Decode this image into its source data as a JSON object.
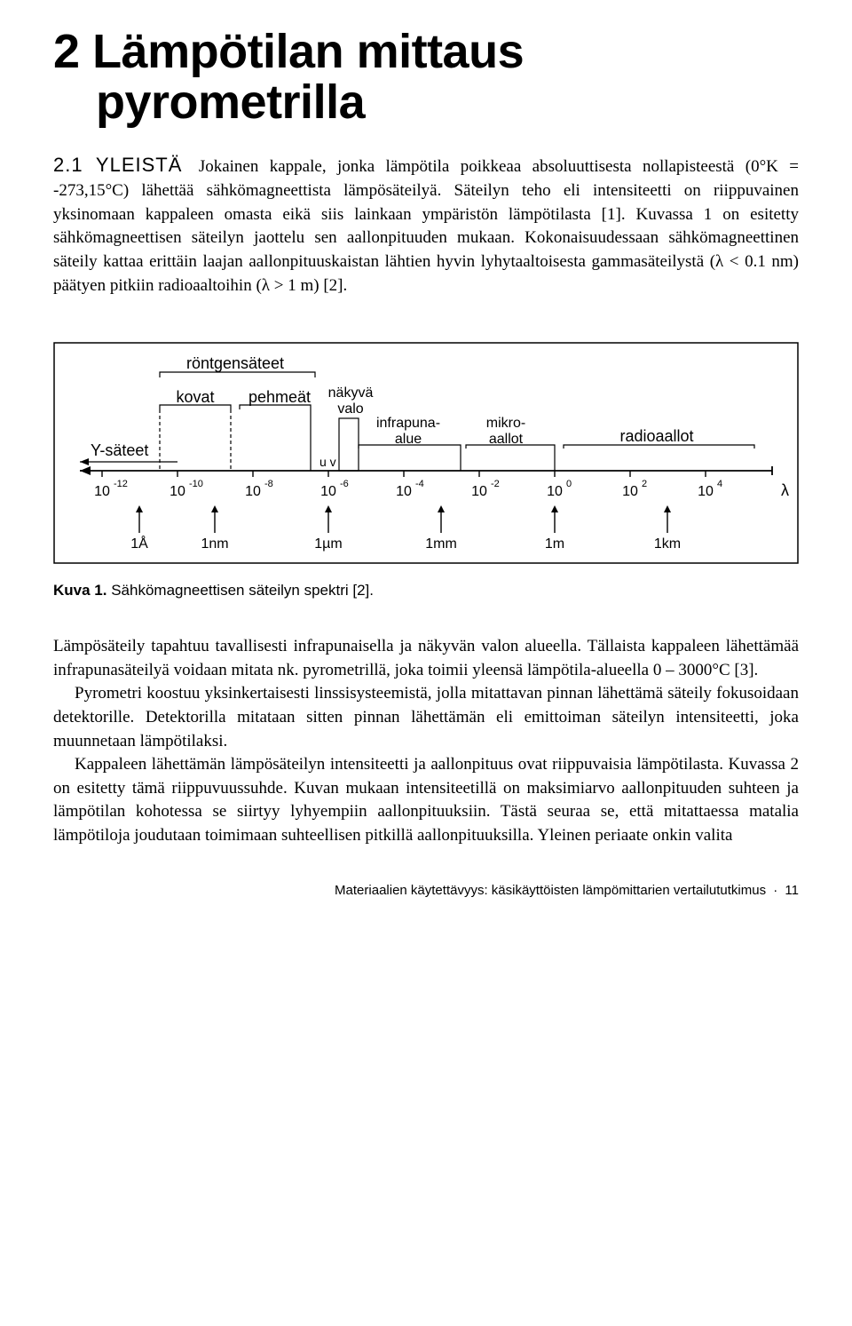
{
  "chapter": {
    "number": "2",
    "title_line1": "Lämpötilan mittaus",
    "title_line2": "pyrometrilla"
  },
  "section21": {
    "heading": "2.1 YLEISTÄ",
    "para1": "Jokainen kappale, jonka lämpötila poikkeaa absoluuttisesta nollapisteestä (0°K = -273,15°C) lähettää sähkömagneettista lämpösäteilyä. Säteilyn teho eli intensiteetti on riippuvainen yksinomaan kappaleen omasta eikä siis lainkaan ympäristön lämpötilasta [1]. Kuvassa 1 on esitetty sähkömagneettisen säteilyn jaottelu sen aallonpituuden mukaan. Kokonaisuudessaan sähkömagneettinen säteily kattaa erittäin laajan aallonpituuskaistan lähtien hyvin lyhytaaltoisesta gammasäteilystä (λ < 0.1 nm) päätyen pitkiin radioaaltoihin (λ > 1 m) [2]."
  },
  "figure1": {
    "labels": {
      "rontgen": "röntgensäteet",
      "kovat": "kovat",
      "pehmeat": "pehmeät",
      "nakyva": "näkyvä",
      "valo": "valo",
      "uv": "u v",
      "infrapuna": "infrapuna-",
      "alue": "alue",
      "mikro": "mikro-",
      "aallot": "aallot",
      "radio": "radioaallot",
      "gamma": "Y-säteet",
      "lambda": "λ"
    },
    "powers": [
      "-12",
      "-10",
      "-8",
      "-6",
      "-4",
      "-2",
      "0",
      "2",
      "4"
    ],
    "units": [
      "1Å",
      "1nm",
      "1µm",
      "1mm",
      "1m",
      "1km"
    ],
    "caption_bold": "Kuva 1.",
    "caption_rest": " Sähkömagneettisen säteilyn spektri [2]."
  },
  "section21_cont": {
    "para2": "Lämpösäteily tapahtuu tavallisesti infrapunaisella ja näkyvän valon alueella. Tällaista kappaleen lähettämää infrapunasäteilyä voidaan mitata nk. pyrometrillä, joka toimii yleensä lämpötila-alueella 0 – 3000°C [3].",
    "para3": "Pyrometri koostuu yksinkertaisesti linssisysteemistä, jolla mitattavan pinnan lähettämä säteily fokusoidaan detektorille. Detektorilla mitataan sitten pinnan lähettämän eli emittoiman säteilyn intensiteetti, joka muunnetaan lämpötilaksi.",
    "para4": "Kappaleen lähettämän lämpösäteilyn intensiteetti ja aallonpituus ovat riippuvaisia lämpötilasta. Kuvassa 2 on esitetty tämä riippuvuussuhde. Kuvan mukaan intensiteetillä on maksimiarvo aallonpituuden suhteen ja lämpötilan kohotessa se siirtyy lyhyempiin aallonpituuksiin. Tästä seuraa se, että mitattaessa matalia lämpötiloja joudutaan toimimaan suhteellisen pitkillä aallonpituuksilla. Yleinen periaate onkin valita"
  },
  "footer": {
    "text": "Materiaalien käytettävyys: käsikäyttöisten lämpömittarien vertailututkimus",
    "page": "11"
  },
  "colors": {
    "text": "#000000",
    "bg": "#ffffff",
    "stroke": "#000000"
  }
}
